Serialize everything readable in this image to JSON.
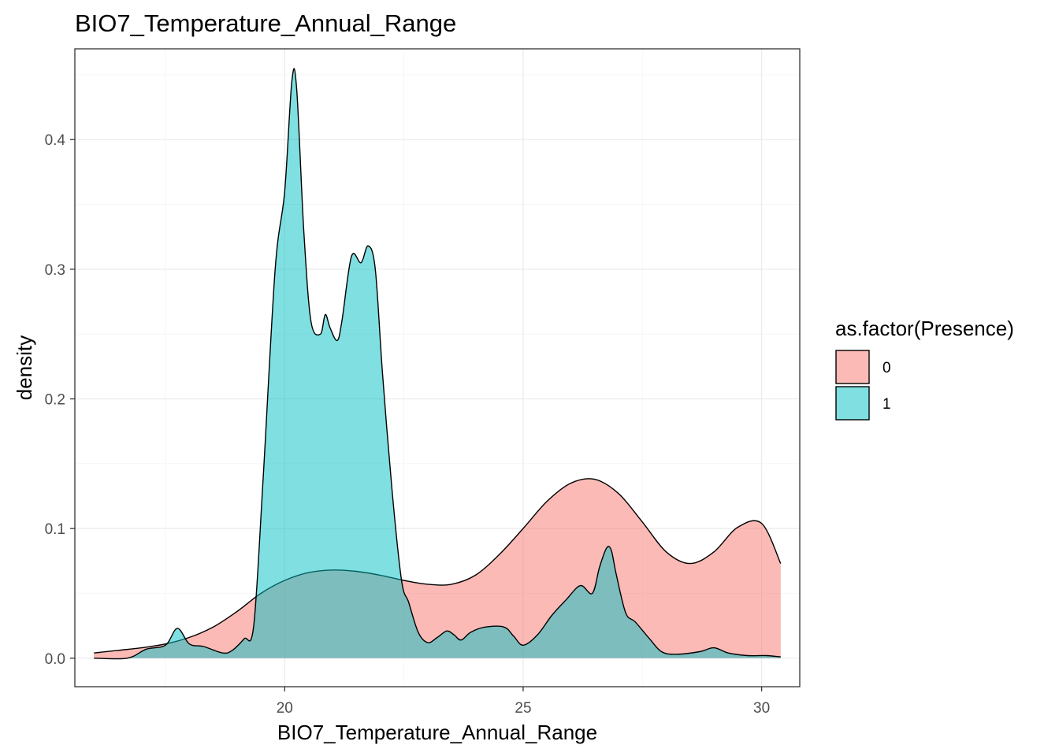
{
  "chart_data": {
    "type": "area",
    "title": "BIO7_Temperature_Annual_Range",
    "xlabel": "BIO7_Temperature_Annual_Range",
    "ylabel": "density",
    "xlim": [
      15.6,
      30.8
    ],
    "ylim": [
      -0.022,
      0.47
    ],
    "x_ticks": [
      20,
      25,
      30
    ],
    "x_tick_labels": [
      "20",
      "25",
      "30"
    ],
    "y_ticks": [
      0.0,
      0.1,
      0.2,
      0.3,
      0.4
    ],
    "y_tick_labels": [
      "0.0",
      "0.1",
      "0.2",
      "0.3",
      "0.4"
    ],
    "grid": true,
    "legend": {
      "title": "as.factor(Presence)",
      "placement": "right"
    },
    "series": [
      {
        "name": "0",
        "color": "#F8766D",
        "x": [
          16.0,
          16.5,
          17.0,
          17.5,
          18.0,
          18.5,
          19.0,
          19.5,
          20.0,
          20.5,
          21.0,
          21.5,
          22.0,
          22.5,
          23.0,
          23.5,
          24.0,
          24.5,
          25.0,
          25.5,
          26.0,
          26.5,
          27.0,
          27.5,
          28.0,
          28.5,
          29.0,
          29.5,
          30.0,
          30.4
        ],
        "values": [
          0.004,
          0.006,
          0.008,
          0.011,
          0.016,
          0.024,
          0.036,
          0.05,
          0.06,
          0.066,
          0.068,
          0.067,
          0.064,
          0.06,
          0.057,
          0.057,
          0.064,
          0.08,
          0.1,
          0.121,
          0.135,
          0.138,
          0.127,
          0.105,
          0.082,
          0.073,
          0.082,
          0.101,
          0.104,
          0.073
        ]
      },
      {
        "name": "1",
        "color": "#00BFC4",
        "x": [
          16.0,
          16.7,
          17.1,
          17.5,
          17.75,
          18.0,
          18.3,
          18.7,
          18.9,
          19.15,
          19.35,
          19.55,
          19.8,
          20.0,
          20.15,
          20.25,
          20.4,
          20.55,
          20.75,
          20.85,
          20.95,
          21.1,
          21.2,
          21.4,
          21.6,
          21.75,
          21.9,
          22.05,
          22.25,
          22.45,
          22.6,
          22.8,
          23.0,
          23.2,
          23.4,
          23.55,
          23.7,
          23.9,
          24.2,
          24.6,
          24.8,
          25.0,
          25.3,
          25.6,
          25.9,
          26.2,
          26.45,
          26.6,
          26.75,
          26.85,
          26.95,
          27.15,
          27.35,
          27.65,
          27.9,
          28.2,
          28.7,
          29.0,
          29.3,
          29.7,
          30.1,
          30.4
        ],
        "values": [
          0.0,
          0.0,
          0.007,
          0.01,
          0.023,
          0.011,
          0.009,
          0.004,
          0.006,
          0.015,
          0.025,
          0.14,
          0.3,
          0.36,
          0.445,
          0.44,
          0.33,
          0.26,
          0.25,
          0.265,
          0.255,
          0.245,
          0.26,
          0.31,
          0.305,
          0.318,
          0.3,
          0.22,
          0.13,
          0.06,
          0.043,
          0.02,
          0.012,
          0.016,
          0.021,
          0.018,
          0.014,
          0.02,
          0.024,
          0.024,
          0.017,
          0.01,
          0.018,
          0.033,
          0.045,
          0.056,
          0.05,
          0.07,
          0.085,
          0.083,
          0.065,
          0.035,
          0.028,
          0.015,
          0.005,
          0.003,
          0.005,
          0.008,
          0.004,
          0.002,
          0.002,
          0.001
        ]
      }
    ]
  }
}
